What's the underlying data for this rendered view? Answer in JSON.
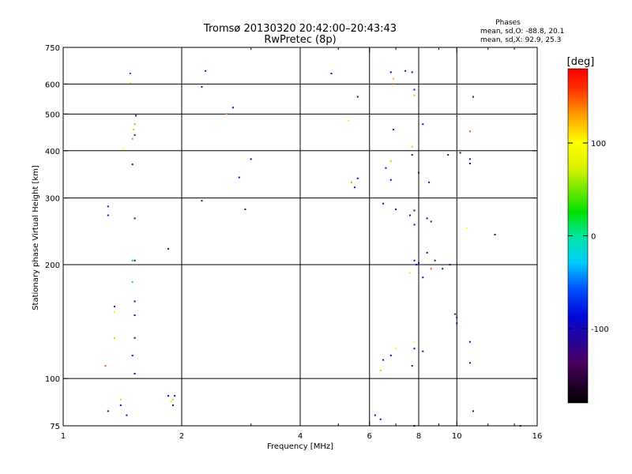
{
  "chart_data": {
    "type": "scatter",
    "title": "Tromsø 20130320 20:42:00–20:43:43",
    "subtitle": "RwPretec (8p)",
    "xlabel": "Frequency [MHz]",
    "ylabel": "Stationary phase Virtual Height [km]",
    "x_scale": "log",
    "y_scale": "log",
    "xlim": [
      1,
      16
    ],
    "ylim": [
      75,
      750
    ],
    "x_ticks": [
      1,
      2,
      4,
      6,
      8,
      10,
      16
    ],
    "x_tick_labels": [
      "1",
      "2",
      "4",
      "6",
      "8",
      "10",
      "16"
    ],
    "x_grid": [
      2,
      4,
      6,
      8,
      10
    ],
    "x_minor_ticks": [
      3,
      5,
      7,
      9,
      12,
      14
    ],
    "y_ticks": [
      75,
      100,
      200,
      300,
      400,
      500,
      600,
      750
    ],
    "y_tick_labels": [
      "75",
      "100",
      "200",
      "300",
      "400",
      "500",
      "600",
      "750"
    ],
    "y_grid": [
      100,
      200,
      300,
      400,
      500,
      600
    ],
    "grid": true,
    "phases": {
      "heading": "Phases",
      "line_o": "mean, sd,O:  -88.8, 20.1",
      "line_x": "mean, sd,X:  92.9, 25.3"
    },
    "colorbar": {
      "label": "[deg]",
      "range": [
        -180,
        180
      ],
      "ticks": [
        100,
        0,
        -100
      ],
      "tick_labels": [
        "100",
        "0",
        "-100"
      ]
    },
    "points": [
      [
        1.3,
        285,
        -110
      ],
      [
        1.3,
        270,
        -100
      ],
      [
        1.48,
        605,
        80
      ],
      [
        1.48,
        640,
        -60
      ],
      [
        1.5,
        430,
        10
      ],
      [
        1.52,
        470,
        40
      ],
      [
        1.51,
        455,
        60
      ],
      [
        1.52,
        440,
        -120
      ],
      [
        1.53,
        495,
        -110
      ],
      [
        1.5,
        368,
        -100
      ],
      [
        1.52,
        265,
        -110
      ],
      [
        1.5,
        205,
        20
      ],
      [
        1.52,
        205,
        -90
      ],
      [
        1.5,
        180,
        20
      ],
      [
        1.52,
        160,
        -100
      ],
      [
        1.52,
        147,
        -100
      ],
      [
        1.52,
        128,
        -110
      ],
      [
        1.5,
        115,
        -100
      ],
      [
        1.52,
        103,
        -100
      ],
      [
        1.35,
        155,
        -100
      ],
      [
        1.28,
        108,
        150
      ],
      [
        1.35,
        150,
        80
      ],
      [
        1.4,
        85,
        -100
      ],
      [
        1.3,
        82,
        -110
      ],
      [
        1.45,
        80,
        -100
      ],
      [
        1.4,
        88,
        60
      ],
      [
        1.35,
        128,
        60
      ],
      [
        1.42,
        405,
        100
      ],
      [
        2.3,
        650,
        -100
      ],
      [
        2.25,
        590,
        -110
      ],
      [
        2.25,
        295,
        -120
      ],
      [
        2.6,
        500,
        140
      ],
      [
        2.7,
        520,
        -100
      ],
      [
        3.0,
        380,
        -100
      ],
      [
        2.9,
        280,
        -110
      ],
      [
        2.8,
        340,
        -90
      ],
      [
        1.85,
        220,
        -120
      ],
      [
        1.85,
        90,
        -100
      ],
      [
        1.9,
        88,
        60
      ],
      [
        1.88,
        87,
        80
      ],
      [
        1.9,
        85,
        -110
      ],
      [
        1.92,
        90,
        -100
      ],
      [
        4.8,
        640,
        -110
      ],
      [
        5.6,
        555,
        -100
      ],
      [
        5.3,
        480,
        90
      ],
      [
        5.5,
        320,
        -100
      ],
      [
        5.4,
        330,
        40
      ],
      [
        5.6,
        338,
        -90
      ],
      [
        6.8,
        645,
        -100
      ],
      [
        6.9,
        620,
        120
      ],
      [
        6.9,
        600,
        150
      ],
      [
        7.4,
        650,
        -130
      ],
      [
        7.7,
        645,
        -110
      ],
      [
        7.8,
        580,
        -110
      ],
      [
        7.8,
        560,
        60
      ],
      [
        7.7,
        410,
        120
      ],
      [
        7.7,
        390,
        -130
      ],
      [
        6.8,
        375,
        60
      ],
      [
        6.9,
        455,
        -110
      ],
      [
        6.6,
        360,
        -90
      ],
      [
        6.8,
        335,
        -100
      ],
      [
        6.5,
        290,
        -110
      ],
      [
        7.0,
        280,
        -100
      ],
      [
        7.6,
        270,
        -110
      ],
      [
        7.8,
        278,
        -110
      ],
      [
        8.4,
        265,
        -100
      ],
      [
        8.0,
        350,
        -130
      ],
      [
        8.2,
        470,
        -100
      ],
      [
        8.5,
        330,
        -110
      ],
      [
        7.8,
        255,
        -110
      ],
      [
        8.6,
        260,
        -120
      ],
      [
        11.0,
        555,
        -110
      ],
      [
        10.8,
        450,
        150
      ],
      [
        10.8,
        380,
        -100
      ],
      [
        10.8,
        370,
        -110
      ],
      [
        10.6,
        250,
        100
      ],
      [
        12.5,
        240,
        -120
      ],
      [
        10.2,
        395,
        -130
      ],
      [
        9.5,
        390,
        -110
      ],
      [
        7.8,
        205,
        -100
      ],
      [
        7.9,
        200,
        -110
      ],
      [
        8.4,
        215,
        -100
      ],
      [
        8.8,
        205,
        -110
      ],
      [
        9.2,
        195,
        -120
      ],
      [
        9.6,
        200,
        -110
      ],
      [
        8.6,
        195,
        150
      ],
      [
        8.0,
        202,
        -100
      ],
      [
        7.6,
        190,
        80
      ],
      [
        8.2,
        185,
        -100
      ],
      [
        9.9,
        148,
        -110
      ],
      [
        10.0,
        145,
        -140
      ],
      [
        10.0,
        140,
        -120
      ],
      [
        10.8,
        125,
        -100
      ],
      [
        10.8,
        110,
        -110
      ],
      [
        11.0,
        82,
        -120
      ],
      [
        14.5,
        75,
        -110
      ],
      [
        7.8,
        75,
        -110
      ],
      [
        6.2,
        80,
        -110
      ],
      [
        6.4,
        78,
        -100
      ],
      [
        6.5,
        112,
        -120
      ],
      [
        6.8,
        115,
        -100
      ],
      [
        7.0,
        120,
        100
      ],
      [
        7.8,
        125,
        100
      ],
      [
        7.8,
        120,
        -100
      ],
      [
        8.2,
        118,
        -110
      ],
      [
        7.7,
        108,
        -110
      ],
      [
        6.4,
        105,
        60
      ]
    ]
  }
}
